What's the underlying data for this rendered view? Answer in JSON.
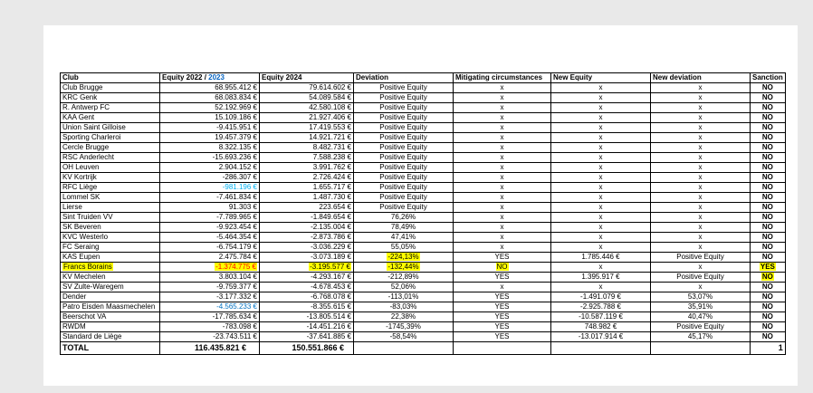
{
  "colors": {
    "highlight": "#FFFF00",
    "header_year_blue": "#0563C1",
    "rfc_liege_value_blue": "#00B0F0",
    "patro_value_blue": "#0070C0",
    "francs_borains_value_red": "#FF0000"
  },
  "table": {
    "headers": [
      {
        "t": "Club"
      },
      {
        "t": "Equity 2022 / ",
        "t2": "2023",
        "t2_color": "#0563C1"
      },
      {
        "t": "Equity 2024"
      },
      {
        "t": "Deviation"
      },
      {
        "t": "Mitigating circumstances"
      },
      {
        "t": "New Equity"
      },
      {
        "t": "New deviation"
      },
      {
        "t": "Sanction"
      }
    ],
    "rows": [
      {
        "cells": [
          "Club Brugge",
          "68.955.412 €",
          "79.614.602 €",
          "Positive Equity",
          "x",
          "x",
          "x",
          "NO"
        ]
      },
      {
        "cells": [
          "KRC Genk",
          "68.083.834 €",
          "54.089.584 €",
          "Positive Equity",
          "x",
          "x",
          "x",
          "NO"
        ]
      },
      {
        "cells": [
          "R. Antwerp FC",
          "52.192.969 €",
          "42.580.108 €",
          "Positive Equity",
          "x",
          "x",
          "x",
          "NO"
        ]
      },
      {
        "cells": [
          "KAA Gent",
          "15.109.186 €",
          "21.927.406 €",
          "Positive Equity",
          "x",
          "x",
          "x",
          "NO"
        ]
      },
      {
        "cells": [
          "Union Saint Gilloise",
          "-9.415.951 €",
          "17.419.553 €",
          "Positive Equity",
          "x",
          "x",
          "x",
          "NO"
        ]
      },
      {
        "cells": [
          "Sporting Charleroi",
          "19.457.379 €",
          "14.921.721 €",
          "Positive Equity",
          "x",
          "x",
          "x",
          "NO"
        ]
      },
      {
        "cells": [
          "Cercle Brugge",
          "8.322.135 €",
          "8.482.731 €",
          "Positive Equity",
          "x",
          "x",
          "x",
          "NO"
        ]
      },
      {
        "cells": [
          "RSC Anderlecht",
          "-15.693.236 €",
          "7.588.238 €",
          "Positive Equity",
          "x",
          "x",
          "x",
          "NO"
        ]
      },
      {
        "cells": [
          "OH Leuven",
          "2.904.152 €",
          "3.991.762 €",
          "Positive Equity",
          "x",
          "x",
          "x",
          "NO"
        ]
      },
      {
        "cells": [
          "KV Kortrijk",
          "-286.307 €",
          "2.726.424 €",
          "Positive Equity",
          "x",
          "x",
          "x",
          "NO"
        ]
      },
      {
        "cells": [
          "RFC Liège",
          "-981.196 €",
          "1.655.717 €",
          "Positive Equity",
          "x",
          "x",
          "x",
          "NO"
        ],
        "colors": {
          "1": "#00B0F0"
        }
      },
      {
        "cells": [
          "Lommel SK",
          "-7.461.834 €",
          "1.487.730 €",
          "Positive Equity",
          "x",
          "x",
          "x",
          "NO"
        ]
      },
      {
        "cells": [
          "Lierse",
          "91.303 €",
          "223.654 €",
          "Positive Equity",
          "x",
          "x",
          "x",
          "NO"
        ]
      },
      {
        "cells": [
          "Sint Truiden VV",
          "-7.789.965 €",
          "-1.849.654 €",
          "76,26%",
          "x",
          "x",
          "x",
          "NO"
        ]
      },
      {
        "cells": [
          "SK Beveren",
          "-9.923.454 €",
          "-2.135.004 €",
          "78,49%",
          "x",
          "x",
          "x",
          "NO"
        ]
      },
      {
        "cells": [
          "KVC Westerlo",
          "-5.464.354 €",
          "-2.873.786 €",
          "47,41%",
          "x",
          "x",
          "x",
          "NO"
        ]
      },
      {
        "cells": [
          "FC Seraing",
          "-6.754.179 €",
          "-3.036.229 €",
          "55,05%",
          "x",
          "x",
          "x",
          "NO"
        ]
      },
      {
        "cells": [
          "KAS Eupen",
          "2.475.784 €",
          "-3.073.189 €",
          "-224,13%",
          "YES",
          "1.785.446 €",
          "Positive Equity",
          "NO"
        ],
        "hl": [
          3
        ]
      },
      {
        "cells": [
          "Francs Borains",
          "-1.374.775 €",
          "-3.195.577 €",
          "-132,44%",
          "NO",
          "x",
          "x",
          "YES"
        ],
        "hl": [
          0,
          1,
          2,
          3,
          4,
          7
        ],
        "colors": {
          "1": "#FF0000"
        }
      },
      {
        "cells": [
          "KV Mechelen",
          "3.803.104 €",
          "-4.293.167 €",
          "-212,89%",
          "YES",
          "1.395.917 €",
          "Positive Equity",
          "NO"
        ],
        "hl": [
          7
        ]
      },
      {
        "cells": [
          "SV Zulte-Waregem",
          "-9.759.377 €",
          "-4.678.453 €",
          "52,06%",
          "x",
          "x",
          "x",
          "NO"
        ]
      },
      {
        "cells": [
          "Dender",
          "-3.177.332 €",
          "-6.768.078 €",
          "-113,01%",
          "YES",
          "-1.491.079 €",
          "53,07%",
          "NO"
        ]
      },
      {
        "cells": [
          "Patro Eisden Maasmechelen",
          "-4.565.233 €",
          "-8.355.615 €",
          "-83,03%",
          "YES",
          "-2.925.788 €",
          "35,91%",
          "NO"
        ],
        "colors": {
          "1": "#0070C0"
        }
      },
      {
        "cells": [
          "Beerschot VA",
          "-17.785.634 €",
          "-13.805.514 €",
          "22,38%",
          "YES",
          "-10.587.119 €",
          "40,47%",
          "NO"
        ]
      },
      {
        "cells": [
          "RWDM",
          "-783.098 €",
          "-14.451.216 €",
          "-1745,39%",
          "YES",
          "748.982 €",
          "Positive Equity",
          "NO"
        ]
      },
      {
        "cells": [
          "Standard de Liège",
          "-23.743.511 €",
          "-37.641.885 €",
          "-58,54%",
          "YES",
          "-13.017.914 €",
          "45,17%",
          "NO"
        ]
      }
    ],
    "total": {
      "cells": [
        "TOTAL",
        "116.435.821 €",
        "150.551.866 €",
        "",
        "",
        "",
        "",
        "1"
      ]
    }
  }
}
